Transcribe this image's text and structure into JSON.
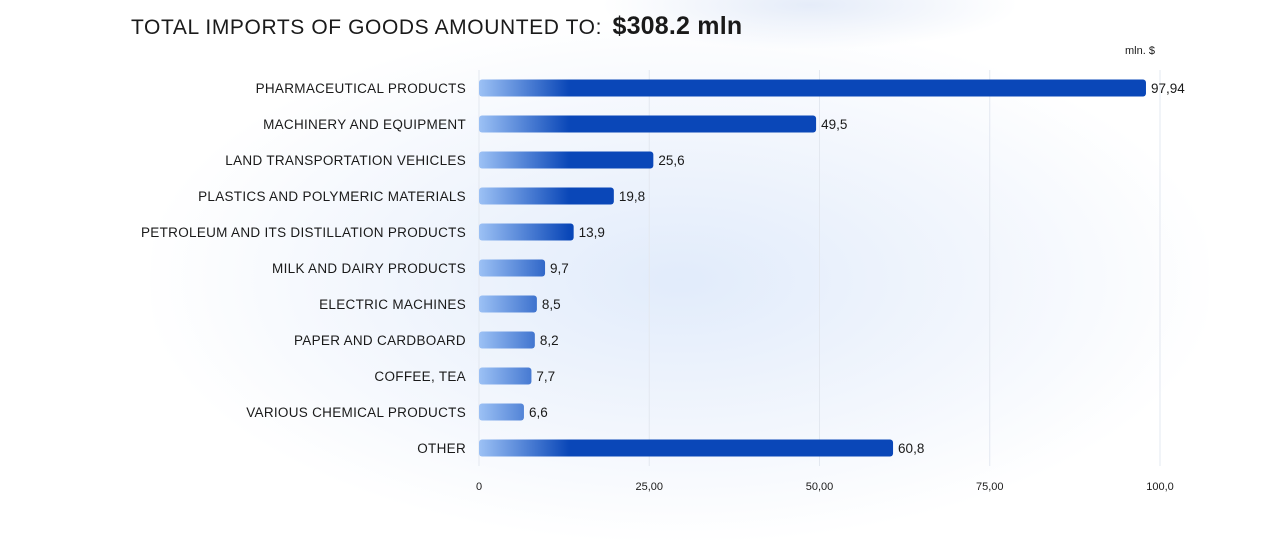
{
  "title": {
    "label": "TOTAL IMPORTS OF GOODS AMOUNTED TO:",
    "value": "$308.2  mln"
  },
  "chart_data": {
    "type": "bar",
    "orientation": "horizontal",
    "unit_label": "mln. $",
    "categories": [
      "PHARMACEUTICAL PRODUCTS",
      "MACHINERY AND EQUIPMENT",
      "LAND TRANSPORTATION VEHICLES",
      "PLASTICS AND POLYMERIC MATERIALS",
      "PETROLEUM AND ITS DISTILLATION PRODUCTS",
      "MILK AND DAIRY PRODUCTS",
      "ELECTRIC MACHINES",
      "PAPER AND CARDBOARD",
      "COFFEE, TEA",
      "VARIOUS CHEMICAL PRODUCTS",
      "OTHER"
    ],
    "values": [
      97.94,
      49.5,
      25.6,
      19.8,
      13.9,
      9.7,
      8.5,
      8.2,
      7.7,
      6.6,
      60.8
    ],
    "value_labels": [
      "97,94",
      "49,5",
      "25,6",
      "19,8",
      "13,9",
      "9,7",
      "8,5",
      "8,2",
      "7,7",
      "6,6",
      "60,8"
    ],
    "xlim": [
      0,
      100
    ],
    "x_ticks": [
      0,
      25,
      50,
      75,
      100
    ],
    "x_tick_labels": [
      "0",
      "25,00",
      "50,00",
      "75,00",
      "100,0"
    ],
    "grid": true,
    "colors": {
      "bar_start": "#9cc1f5",
      "bar_end": "#0a47b8",
      "grid": "#e3e8f0",
      "text": "#1a1a1a"
    }
  }
}
